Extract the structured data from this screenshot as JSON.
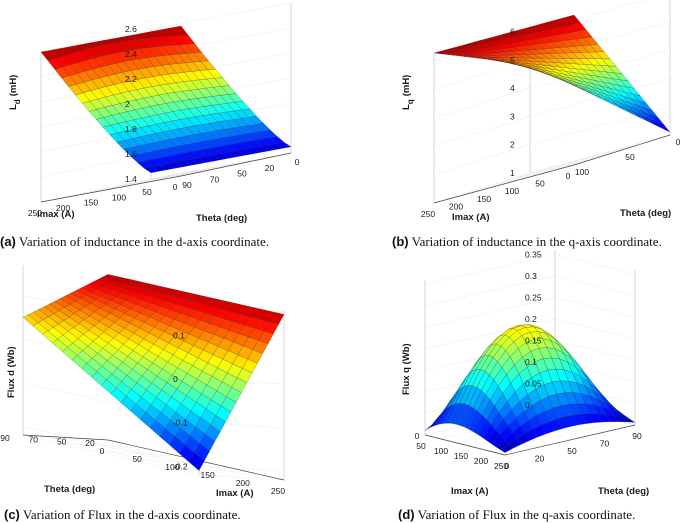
{
  "chart_data": [
    {
      "id": "a",
      "type": "surface",
      "caption_letter": "(a)",
      "caption_text": "Variation of inductance in the d-axis coordinate.",
      "zlabel": "L_d (mH)",
      "zlabel_main": "L",
      "zlabel_sub": "d",
      "zlabel_unit": "(mH)",
      "xlabel": "Imax (A)",
      "ylabel": "Theta (deg)",
      "x_ticks": [
        "250",
        "200",
        "150",
        "100",
        "50",
        "0"
      ],
      "y_ticks": [
        "90",
        "70",
        "50",
        "20",
        "0"
      ],
      "z_ticks": [
        "1.4",
        "1.6",
        "1.8",
        "2",
        "2.2",
        "2.4",
        "2.6"
      ],
      "zlim": [
        1.4,
        2.6
      ],
      "imax_range": [
        0,
        250
      ],
      "theta_range": [
        0,
        90
      ],
      "surface_corners": {
        "imax0_theta0": 2.6,
        "imax250_theta0": 2.6,
        "imax250_theta90": 1.45,
        "imax0_theta90": 1.47
      }
    },
    {
      "id": "b",
      "type": "surface",
      "caption_letter": "(b)",
      "caption_text": "Variation of inductance in the q-axis coordinate.",
      "zlabel": "L_q (mH)",
      "zlabel_main": "L",
      "zlabel_sub": "q",
      "zlabel_unit": "(mH)",
      "xlabel": "Imax (A)",
      "ylabel": "Theta (deg)",
      "x_ticks": [
        "250",
        "200",
        "150",
        "100",
        "50",
        "0"
      ],
      "y_ticks": [
        "100",
        "50",
        "0"
      ],
      "z_ticks": [
        "1",
        "2",
        "3",
        "4",
        "5",
        "6"
      ],
      "zlim": [
        1,
        6.3
      ],
      "imax_range": [
        0,
        250
      ],
      "theta_range": [
        0,
        100
      ],
      "surface_corners": {
        "imax0_theta0": 6.3,
        "imax250_theta0": 4.8,
        "imax250_theta90": 4.6,
        "imax0_theta90": 1.1
      }
    },
    {
      "id": "c",
      "type": "surface",
      "caption_letter": "(c)",
      "caption_text": "Variation of Flux in the d-axis coordinate.",
      "zlabel": "Flux d (Wb)",
      "xlabel": "Imax (A)",
      "ylabel": "Theta (deg)",
      "x_ticks": [
        "250",
        "200",
        "150",
        "100",
        "50",
        "0"
      ],
      "y_ticks": [
        "20",
        "50",
        "70",
        "90"
      ],
      "z_ticks": [
        "-0.2",
        "-0.1",
        "0",
        "0.1"
      ],
      "zlim": [
        -0.22,
        0.17
      ],
      "imax_range": [
        0,
        250
      ],
      "theta_range": [
        0,
        90
      ],
      "surface_corners": {
        "imax0_theta0": 0.16,
        "imax250_theta0": 0.16,
        "imax250_theta90": -0.21,
        "imax0_theta90": 0.05
      }
    },
    {
      "id": "d",
      "type": "surface",
      "caption_letter": "(d)",
      "caption_text": "Variation of Flux in the q-axis coordinate.",
      "zlabel": "Flux q (Wb)",
      "xlabel": "Imax (A)",
      "ylabel": "Theta (deg)",
      "x_ticks": [
        "50",
        "100",
        "150",
        "200",
        "250"
      ],
      "x_zero": "0",
      "y_ticks": [
        "0",
        "20",
        "50",
        "70",
        "90"
      ],
      "z_ticks": [
        "0",
        "0.05",
        "0.1",
        "0.15",
        "0.2",
        "0.25",
        "0.3",
        "0.35"
      ],
      "zlim": [
        0,
        0.36
      ],
      "imax_range": [
        0,
        250
      ],
      "theta_range": [
        0,
        90
      ],
      "surface_corners": {
        "imax0_theta0": 0.0,
        "imax250_theta0": 0.0,
        "imax250_theta90": 0.0,
        "imax0_theta90": 0.0,
        "peak": 0.35
      }
    }
  ]
}
